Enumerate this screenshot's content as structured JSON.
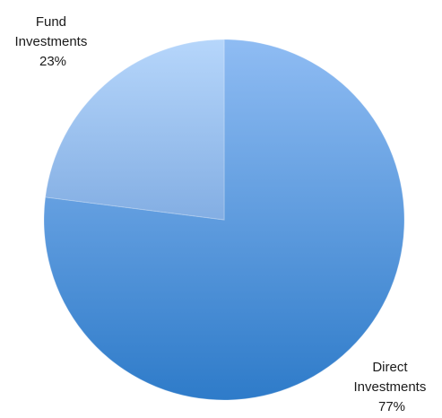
{
  "chart_data": {
    "type": "pie",
    "title": "",
    "slices": [
      {
        "label_lines": [
          "Direct",
          "Investments"
        ],
        "value": 77,
        "percent_label": "77%",
        "color_light": "#8fbcf3",
        "color_dark": "#2e7bc9"
      },
      {
        "label_lines": [
          "Fund",
          "Investments"
        ],
        "value": 23,
        "percent_label": "23%",
        "color_light": "#b6d6fb",
        "color_dark": "#83aee3"
      }
    ],
    "start_angle": "12 o'clock",
    "direction": "clockwise",
    "legend": "none"
  }
}
